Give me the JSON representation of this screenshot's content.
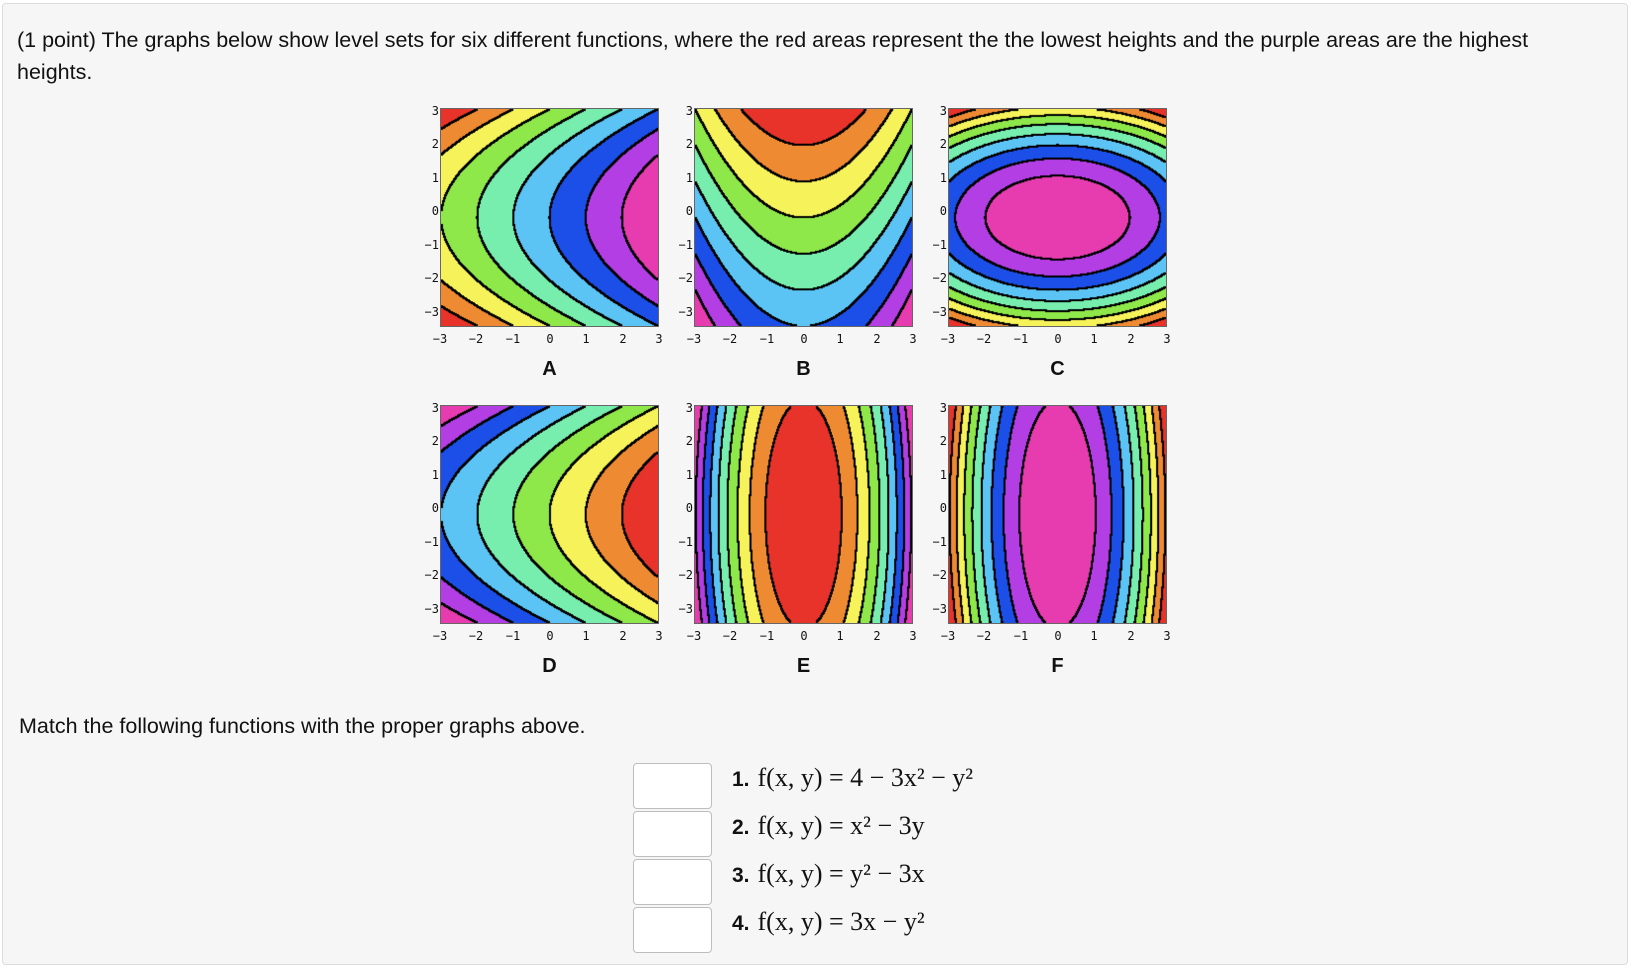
{
  "question": {
    "intro": "(1 point) The graphs below show level sets for six different functions, where the red areas represent the the lowest heights and the purple areas are the highest heights.",
    "match_prompt": "Match the following functions with the proper graphs above."
  },
  "axis_ticks": [
    "−3",
    "−2",
    "−1",
    "0",
    "1",
    "2",
    "3"
  ],
  "plots": [
    {
      "label": "A",
      "colors_name": "rainbow"
    },
    {
      "label": "B",
      "colors_name": "rainbow"
    },
    {
      "label": "C",
      "colors_name": "rainbow"
    },
    {
      "label": "D",
      "colors_name": "rainbow"
    },
    {
      "label": "E",
      "colors_name": "rainbow"
    },
    {
      "label": "F",
      "colors_name": "rainbow"
    }
  ],
  "palette": [
    "#e8332a",
    "#ee8a32",
    "#f6f35a",
    "#8fe84a",
    "#78eeae",
    "#5cc4f4",
    "#1b4fe8",
    "#b23ee4",
    "#e63cb0"
  ],
  "functions": [
    {
      "number": "1.",
      "formula": "f(x, y) = 4 − 3x² − y²",
      "answer": ""
    },
    {
      "number": "2.",
      "formula": "f(x, y) = x² − 3y",
      "answer": ""
    },
    {
      "number": "3.",
      "formula": "f(x, y) = y² − 3x",
      "answer": ""
    },
    {
      "number": "4.",
      "formula": "f(x, y) = 3x − y²",
      "answer": ""
    }
  ]
}
